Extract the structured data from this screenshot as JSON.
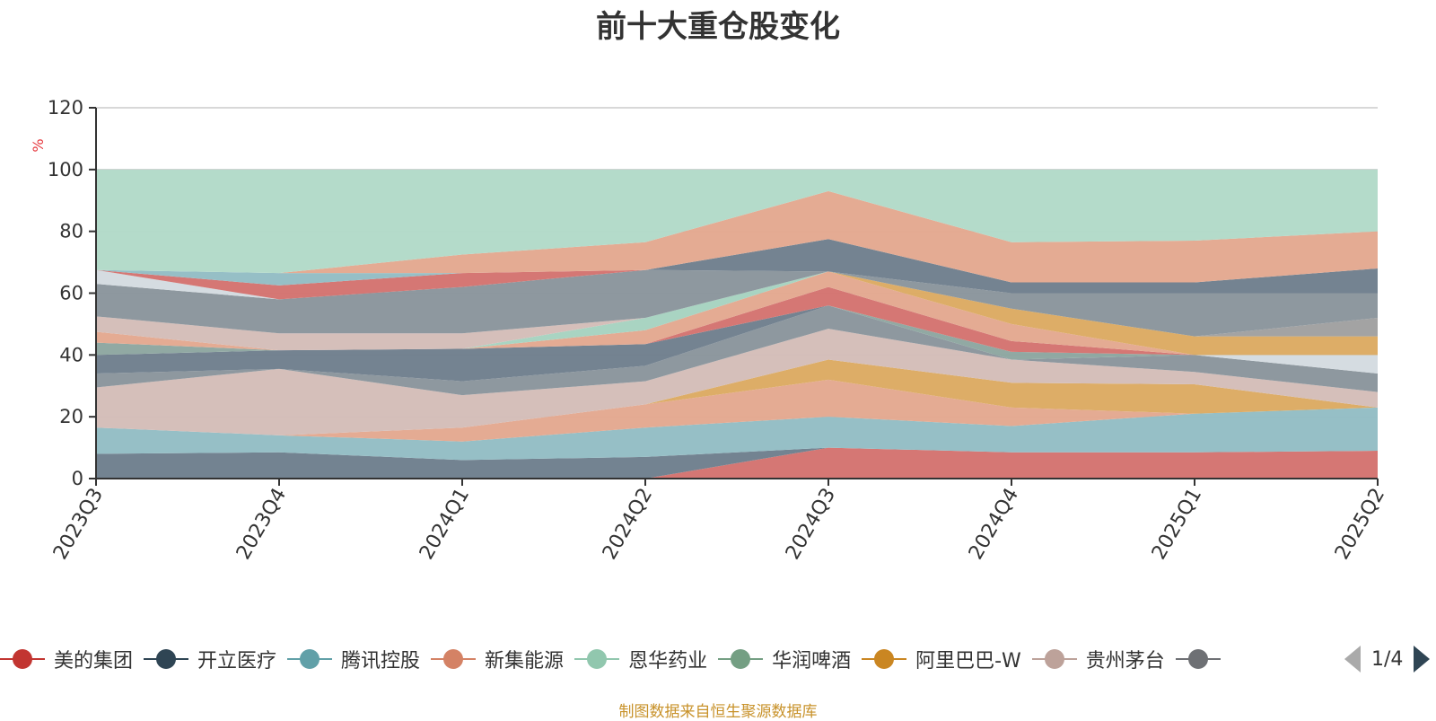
{
  "chart_data": {
    "type": "area",
    "title": "前十大重仓股变化",
    "unit": "%",
    "ylim": [
      0,
      120
    ],
    "yticks": [
      0,
      20,
      40,
      60,
      80,
      100,
      120
    ],
    "grid": true,
    "legend_position": "bottom",
    "categories": [
      "2023Q3",
      "2023Q4",
      "2024Q1",
      "2024Q2",
      "2024Q3",
      "2024Q4",
      "2025Q1",
      "2025Q2"
    ],
    "layers": [
      {
        "color": "#d47370",
        "top": [
          0,
          0,
          0,
          0,
          10,
          8.5,
          8.5,
          9
        ]
      },
      {
        "color": "#6e7f8d",
        "top": [
          8,
          8.5,
          6,
          7,
          10,
          8.5,
          8.5,
          9
        ]
      },
      {
        "color": "#93bdc4",
        "top": [
          16.5,
          14,
          12,
          16.5,
          20,
          17,
          21,
          23
        ]
      },
      {
        "color": "#e3a890",
        "top": [
          16.5,
          14,
          16.5,
          24,
          32,
          23,
          21,
          23
        ]
      },
      {
        "color": "#dcaa62",
        "top": [
          16.5,
          14,
          16.5,
          24,
          38.5,
          31,
          30.5,
          23
        ]
      },
      {
        "color": "#d4bdb8",
        "top": [
          29.5,
          35.5,
          27,
          31.5,
          48.5,
          38.5,
          34.5,
          28
        ]
      },
      {
        "color": "#8a959c",
        "top": [
          34,
          35.5,
          31.5,
          36.5,
          56,
          38.5,
          40,
          34
        ]
      },
      {
        "color": "#707f8d",
        "top": [
          40,
          41.5,
          42,
          43.5,
          56,
          38.5,
          40,
          34
        ]
      },
      {
        "color": "#d4dbe0",
        "top": [
          40,
          41.5,
          42,
          43.5,
          56,
          38.5,
          40,
          40
        ]
      },
      {
        "color": "#889584",
        "top": [
          40,
          41.5,
          42,
          43.5,
          56,
          38.5,
          40,
          40
        ]
      },
      {
        "color": "#8da6a0",
        "top": [
          44,
          41.5,
          42,
          43.5,
          56,
          41,
          40,
          40
        ]
      },
      {
        "color": "#d47370",
        "top": [
          44,
          41.5,
          42,
          43.5,
          62,
          44.5,
          40,
          40
        ]
      },
      {
        "color": "#e3a890",
        "top": [
          47.5,
          41.5,
          42,
          48,
          67,
          50,
          40,
          40
        ]
      },
      {
        "color": "#a6d3c0",
        "top": [
          47.5,
          41.5,
          42,
          52,
          67,
          50,
          40,
          40
        ]
      },
      {
        "color": "#dcaa62",
        "top": [
          47.5,
          41.5,
          42,
          52,
          67,
          55,
          46,
          46
        ]
      },
      {
        "color": "#9cb8a2",
        "top": [
          47.5,
          41.5,
          42,
          52,
          67,
          55,
          46,
          46
        ]
      },
      {
        "color": "#a0a0a0",
        "top": [
          47.5,
          41.5,
          42,
          52,
          67,
          55,
          46,
          52
        ]
      },
      {
        "color": "#d4bdb8",
        "top": [
          52.5,
          47,
          47,
          52,
          67,
          55,
          46,
          52
        ]
      },
      {
        "color": "#8a959c",
        "top": [
          63,
          58,
          62,
          67.5,
          67,
          60,
          60,
          60
        ]
      },
      {
        "color": "#d4dbe0",
        "top": [
          67.5,
          58,
          62,
          67.5,
          67,
          60,
          60,
          60
        ]
      },
      {
        "color": "#707f8d",
        "top": [
          67.5,
          58,
          62,
          67.5,
          77.5,
          63.5,
          63.5,
          68
        ]
      },
      {
        "color": "#d47370",
        "top": [
          67.5,
          62.5,
          66.5,
          67.5,
          77.5,
          63.5,
          63.5,
          68
        ]
      },
      {
        "color": "#93bdc4",
        "top": [
          67.5,
          66.5,
          66.5,
          67.5,
          77.5,
          63.5,
          63.5,
          68
        ]
      },
      {
        "color": "#e3a890",
        "top": [
          67.5,
          66.5,
          72.5,
          76.5,
          93,
          76.5,
          77,
          80
        ]
      },
      {
        "color": "#b2dac8",
        "top": [
          100,
          100,
          100,
          100,
          100,
          100,
          100,
          100
        ]
      }
    ],
    "series": [
      {
        "name": "美的集团",
        "color": "#c23531"
      },
      {
        "name": "开立医疗",
        "color": "#2f4554"
      },
      {
        "name": "腾讯控股",
        "color": "#61a0a8"
      },
      {
        "name": "新集能源",
        "color": "#d48265"
      },
      {
        "name": "恩华药业",
        "color": "#91c7ae"
      },
      {
        "name": "华润啤酒",
        "color": "#749f83"
      },
      {
        "name": "阿里巴巴-W",
        "color": "#ca8622"
      },
      {
        "name": "贵州茅台",
        "color": "#bda29a"
      },
      {
        "name": "",
        "color": "#6e7074"
      }
    ]
  },
  "legend": {
    "page_text": "1/4"
  },
  "source_note": "制图数据来自恒生聚源数据库"
}
